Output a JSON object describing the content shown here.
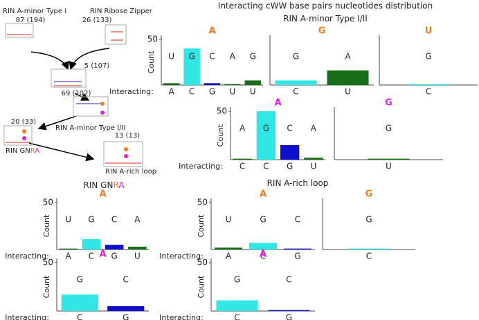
{
  "figure": {
    "title": "Interacting cWW base pairs nucleotides distribution",
    "sections": [
      {
        "parts": [
          "RIN A-minor Type I/II"
        ]
      },
      {
        "parts": [
          "RIN GN",
          "R",
          "A"
        ]
      },
      {
        "parts": [
          "RIN A-rich loop"
        ]
      }
    ]
  },
  "diagram": {
    "nodes": [
      {
        "name": "RIN A-minor Type I",
        "count": "87 (194)"
      },
      {
        "name": "RIN Ribose Zipper",
        "count": "26 (133)"
      },
      {
        "count": "5 (107)"
      },
      {
        "name": "RIN A-minor Type I/II",
        "count": "69 (102)"
      },
      {
        "name_parts": [
          "RIN GN",
          "R",
          "A"
        ],
        "count": "20 (33)"
      },
      {
        "name": "RIN A-rich loop",
        "count": "13 (13)"
      }
    ]
  },
  "chart_data": [
    {
      "type": "bar",
      "title": "A",
      "title_color": "#f07c24",
      "ylabel": "Count",
      "xlabel": "Interacting:",
      "ylim": [
        0,
        50
      ],
      "yticks": [
        50
      ],
      "categories": [
        "U",
        "G",
        "C",
        "A",
        "G"
      ],
      "interacting": [
        "A",
        "C",
        "G",
        "U",
        "U"
      ],
      "values": [
        2,
        40,
        2,
        1,
        5
      ],
      "colors": [
        "#1a6e1a",
        "#33e6e6",
        "#1010cc",
        "#1a6e1a",
        "#1a6e1a"
      ]
    },
    {
      "type": "bar",
      "title": "G",
      "title_color": "#f07c24",
      "ylim": [
        0,
        50
      ],
      "categories": [
        "G",
        "A"
      ],
      "interacting": [
        "C",
        "U"
      ],
      "values": [
        5,
        16
      ],
      "colors": [
        "#33e6e6",
        "#1a6e1a"
      ]
    },
    {
      "type": "bar",
      "title": "U",
      "title_color": "#f07c24",
      "ylim": [
        0,
        50
      ],
      "categories": [
        "G"
      ],
      "interacting": [
        "C"
      ],
      "values": [
        1
      ],
      "colors": [
        "#33e6e6"
      ]
    },
    {
      "type": "bar",
      "title": "A",
      "title_color": "#e020e0",
      "ylabel": "Count",
      "xlabel": "Interacting:",
      "ylim": [
        0,
        50
      ],
      "yticks": [
        50
      ],
      "categories": [
        "A",
        "G",
        "C",
        "A"
      ],
      "interacting": [
        "C",
        "C",
        "G",
        "U"
      ],
      "values": [
        1,
        50,
        15,
        2
      ],
      "colors": [
        "#1a6e1a",
        "#33e6e6",
        "#1010cc",
        "#1a6e1a"
      ]
    },
    {
      "type": "bar",
      "title": "G",
      "title_color": "#e020e0",
      "ylim": [
        0,
        50
      ],
      "categories": [
        "G"
      ],
      "interacting": [
        "U"
      ],
      "values": [
        1
      ],
      "colors": [
        "#1a6e1a"
      ]
    },
    {
      "type": "bar",
      "title": "A",
      "title_color": "#f07c24",
      "ylabel": "Count",
      "xlabel": "Interacting:",
      "ylim": [
        0,
        50
      ],
      "yticks": [
        50
      ],
      "categories": [
        "U",
        "G",
        "C",
        "A"
      ],
      "interacting": [
        "A",
        "C",
        "G",
        "U"
      ],
      "values": [
        1,
        11,
        5,
        3
      ],
      "colors": [
        "#1a6e1a",
        "#33e6e6",
        "#1010cc",
        "#1a6e1a"
      ]
    },
    {
      "type": "bar",
      "title": "A",
      "title_color": "#e020e0",
      "ylabel": "Count",
      "xlabel": "Interacting:",
      "ylim": [
        0,
        50
      ],
      "yticks": [
        50
      ],
      "categories": [
        "G",
        "C"
      ],
      "interacting": [
        "C",
        "G"
      ],
      "values": [
        17,
        5
      ],
      "colors": [
        "#33e6e6",
        "#1010cc"
      ]
    },
    {
      "type": "bar",
      "title": "A",
      "title_color": "#f07c24",
      "ylabel": "Count",
      "xlabel": "Interacting:",
      "ylim": [
        0,
        50
      ],
      "yticks": [
        50
      ],
      "categories": [
        "U",
        "G",
        "C"
      ],
      "interacting": [
        "A",
        "C",
        "G"
      ],
      "values": [
        2,
        7,
        1
      ],
      "colors": [
        "#1a6e1a",
        "#33e6e6",
        "#1010cc"
      ]
    },
    {
      "type": "bar",
      "title": "G",
      "title_color": "#f07c24",
      "ylim": [
        0,
        50
      ],
      "categories": [
        "G"
      ],
      "interacting": [
        "C"
      ],
      "values": [
        1
      ],
      "colors": [
        "#33e6e6"
      ]
    },
    {
      "type": "bar",
      "title": "A",
      "title_color": "#e020e0",
      "ylabel": "Count",
      "xlabel": "Interacting:",
      "ylim": [
        0,
        50
      ],
      "yticks": [
        50
      ],
      "categories": [
        "G",
        "C"
      ],
      "interacting": [
        "C",
        "G"
      ],
      "values": [
        11,
        1
      ],
      "colors": [
        "#33e6e6",
        "#1010cc"
      ]
    }
  ]
}
